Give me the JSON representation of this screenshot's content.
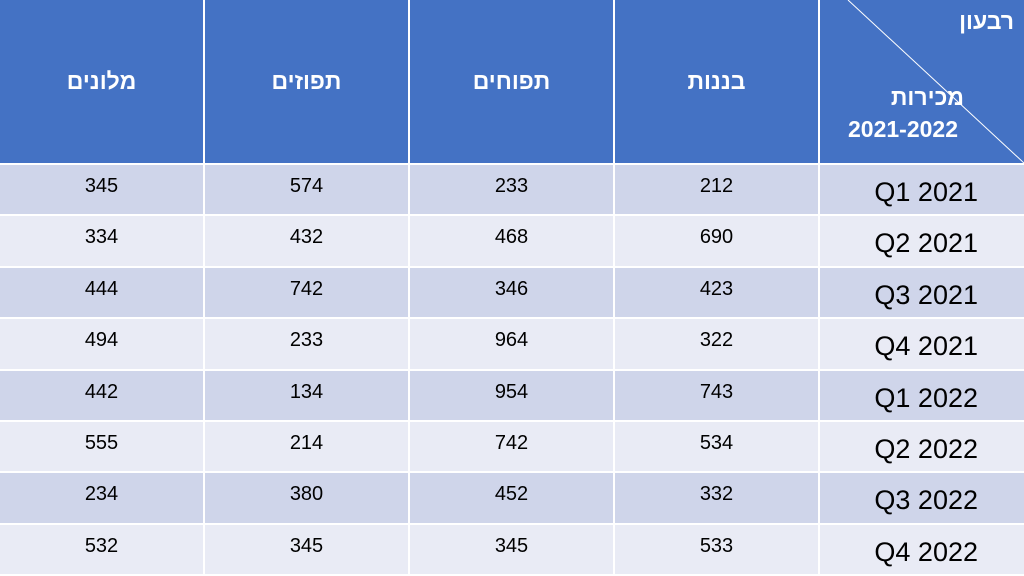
{
  "table": {
    "corner": {
      "top": "רבעון",
      "bottom_line1": "מכירות",
      "bottom_line2": "2021-2022"
    },
    "columns": [
      "בננות",
      "תפוחים",
      "תפוזים",
      "מלונים"
    ],
    "rows": [
      {
        "label": "Q1 2021",
        "values": [
          212,
          233,
          574,
          345
        ]
      },
      {
        "label": "Q2 2021",
        "values": [
          690,
          468,
          432,
          334
        ]
      },
      {
        "label": "Q3 2021",
        "values": [
          423,
          346,
          742,
          444
        ]
      },
      {
        "label": "Q4 2021",
        "values": [
          322,
          964,
          233,
          494
        ]
      },
      {
        "label": "Q1 2022",
        "values": [
          743,
          954,
          134,
          442
        ]
      },
      {
        "label": "Q2 2022",
        "values": [
          534,
          742,
          214,
          555
        ]
      },
      {
        "label": "Q3 2022",
        "values": [
          332,
          452,
          380,
          234
        ]
      },
      {
        "label": "Q4 2022",
        "values": [
          533,
          345,
          345,
          532
        ]
      }
    ]
  }
}
